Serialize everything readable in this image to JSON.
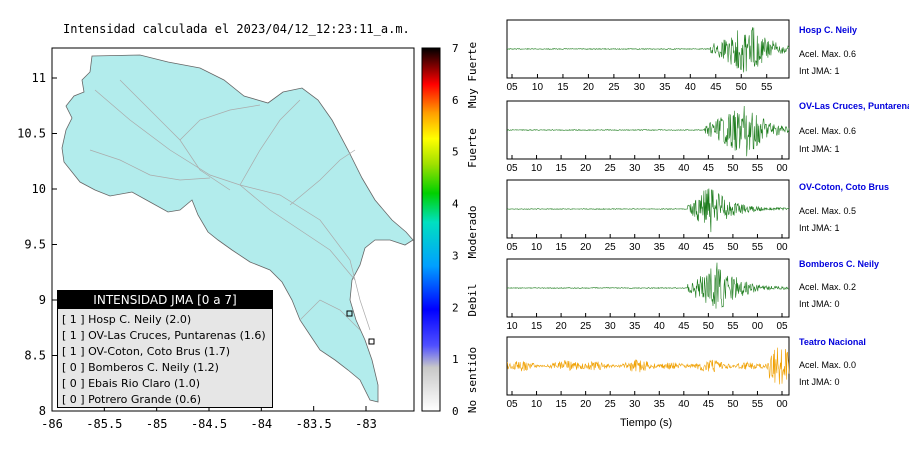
{
  "map": {
    "title": "Intensidad calculada el 2023/04/12_12:23:11_a.m.",
    "x_ticks": [
      "-86",
      "-85.5",
      "-85",
      "-84.5",
      "-84",
      "-83.5",
      "-83"
    ],
    "y_ticks": [
      "11",
      "10.5",
      "10",
      "9.5",
      "9",
      "8.5",
      "8"
    ],
    "land_color": "#b2ecec",
    "colorbar": {
      "ticks": [
        "7",
        "6",
        "5",
        "4",
        "3",
        "2",
        "1",
        "0"
      ],
      "labels": [
        "Muy Fuerte",
        "Fuerte",
        "Moderado",
        "Debil",
        "No sentido"
      ]
    },
    "legend": {
      "title": "INTENSIDAD JMA [0 a 7]",
      "rows": [
        "[ 1 ]  Hosp C. Neily (2.0)",
        "[ 1 ]  OV-Las Cruces, Puntarenas (1.6)",
        "[ 1 ]  OV-Coton, Coto Brus (1.7)",
        "[ 0 ]  Bomberos C. Neily (1.2)",
        "[ 0 ]  Ebais Rio Claro (1.0)",
        "[ 0 ]  Potrero Grande (0.6)"
      ]
    }
  },
  "chart_data": {
    "type": "line",
    "x_label": "Tiempo (s)",
    "panels": [
      {
        "station": "Hosp C. Neily",
        "accel_max": "Acel. Max. 0.6",
        "int_jma": "Int JMA: 1",
        "color": "#1e7d1e",
        "ticks": [
          "05",
          "10",
          "15",
          "20",
          "25",
          "30",
          "35",
          "40",
          "45",
          "50",
          "55"
        ],
        "onset": 0.72,
        "peak": 0.86,
        "amp": 1.0
      },
      {
        "station": "OV-Las Cruces, Puntarenas",
        "accel_max": "Acel. Max. 0.6",
        "int_jma": "Int JMA: 1",
        "color": "#1e7d1e",
        "ticks": [
          "05",
          "10",
          "15",
          "20",
          "25",
          "30",
          "35",
          "40",
          "45",
          "50",
          "55",
          "00"
        ],
        "onset": 0.7,
        "peak": 0.85,
        "amp": 1.0
      },
      {
        "station": "OV-Coton, Coto Brus",
        "accel_max": "Acel. Max. 0.5",
        "int_jma": "Int JMA: 1",
        "color": "#1e7d1e",
        "ticks": [
          "05",
          "10",
          "15",
          "20",
          "25",
          "30",
          "35",
          "40",
          "45",
          "50",
          "55",
          "00"
        ],
        "onset": 0.64,
        "peak": 0.72,
        "amp": 0.9
      },
      {
        "station": "Bomberos C. Neily",
        "accel_max": "Acel. Max. 0.2",
        "int_jma": "Int JMA: 0",
        "color": "#1e7d1e",
        "ticks": [
          "10",
          "15",
          "20",
          "25",
          "30",
          "35",
          "40",
          "45",
          "50",
          "55",
          "00",
          "05"
        ],
        "onset": 0.64,
        "peak": 0.75,
        "amp": 1.0
      },
      {
        "station": "Teatro Nacional",
        "accel_max": "Acel. Max. 0.0",
        "int_jma": "Int JMA: 0",
        "color": "#f0a000",
        "ticks": [
          "05",
          "10",
          "15",
          "20",
          "25",
          "30",
          "35",
          "40",
          "45",
          "50",
          "55",
          "00"
        ],
        "onset": 0.0,
        "peak": 0.97,
        "amp": 0.55
      }
    ]
  }
}
